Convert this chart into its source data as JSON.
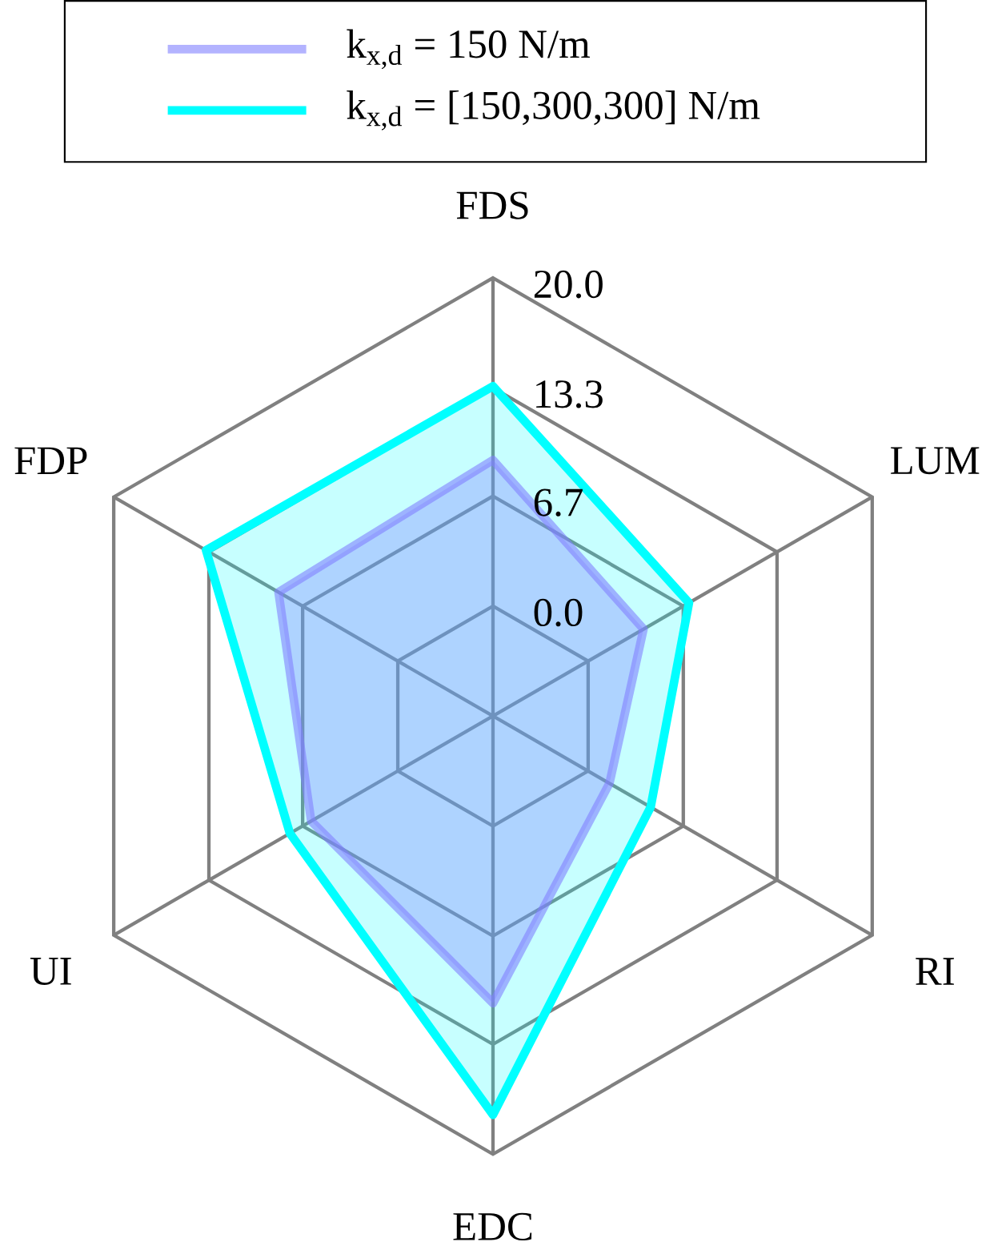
{
  "chart_data": {
    "type": "radar",
    "categories": [
      "FDS",
      "LUM",
      "RI",
      "EDC",
      "UI",
      "FDP"
    ],
    "ylim": [
      -6.7,
      20.0
    ],
    "yticks": [
      {
        "value": 0.0,
        "label": "0.0"
      },
      {
        "value": 6.7,
        "label": "6.7"
      },
      {
        "value": 13.3,
        "label": "13.3"
      },
      {
        "value": 20.0,
        "label": "20.0"
      }
    ],
    "grid": true,
    "legend": "top",
    "series": [
      {
        "name": "k$_{x,d}$ = 150 N/m",
        "color": "#8080ff",
        "values": [
          8.9,
          3.9,
          1.5,
          10.8,
          6.1,
          8.4
        ]
      },
      {
        "name": "k$_{x,d}$ = [150,300,300] N/m",
        "color": "#00ffff",
        "values": [
          13.4,
          7.1,
          4.4,
          17.6,
          7.6,
          13.5
        ]
      }
    ]
  }
}
